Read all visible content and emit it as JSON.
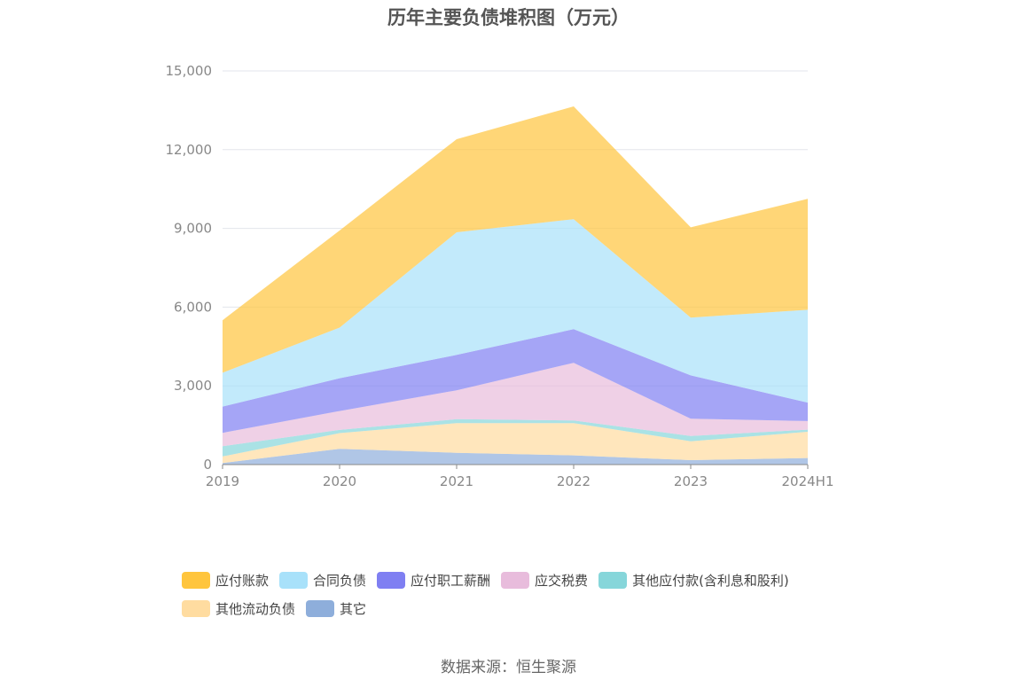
{
  "title": "历年主要负债堆积图（万元）",
  "source": "数据来源：恒生聚源",
  "chart_data": {
    "type": "area",
    "stacked": true,
    "title": "历年主要负债堆积图（万元）",
    "categories": [
      "2019",
      "2020",
      "2021",
      "2022",
      "2023",
      "2024H1"
    ],
    "ylim": [
      0,
      15000
    ],
    "yticks": [
      0,
      3000,
      6000,
      9000,
      12000,
      15000
    ],
    "ytick_labels": [
      "0",
      "3,000",
      "6,000",
      "9,000",
      "12,000",
      "15,000"
    ],
    "grid": true,
    "legend_position": "bottom",
    "series": [
      {
        "name": "其它",
        "color": "#8EAEDB",
        "values": [
          60,
          600,
          450,
          350,
          170,
          250
        ]
      },
      {
        "name": "其他流动负债",
        "color": "#FFDCA0",
        "values": [
          250,
          600,
          1130,
          1230,
          720,
          1000
        ]
      },
      {
        "name": "其他应付款(含利息和股利)",
        "color": "#86D6DA",
        "values": [
          390,
          120,
          150,
          100,
          200,
          80
        ]
      },
      {
        "name": "应交税费",
        "color": "#E8BCDC",
        "values": [
          510,
          720,
          1100,
          2200,
          660,
          330
        ]
      },
      {
        "name": "应付职工薪酬",
        "color": "#7F7FF2",
        "values": [
          1000,
          1250,
          1350,
          1280,
          1650,
          700
        ]
      },
      {
        "name": "合同负债",
        "color": "#A8E1FA",
        "values": [
          1290,
          1930,
          4670,
          4190,
          2200,
          3540
        ]
      },
      {
        "name": "应付账款",
        "color": "#FFC53D",
        "values": [
          2000,
          3700,
          3550,
          4300,
          3440,
          4230
        ]
      }
    ],
    "legend_order": [
      "应付账款",
      "合同负债",
      "应付职工薪酬",
      "应交税费",
      "其他应付款(含利息和股利)",
      "其他流动负债",
      "其它"
    ]
  }
}
